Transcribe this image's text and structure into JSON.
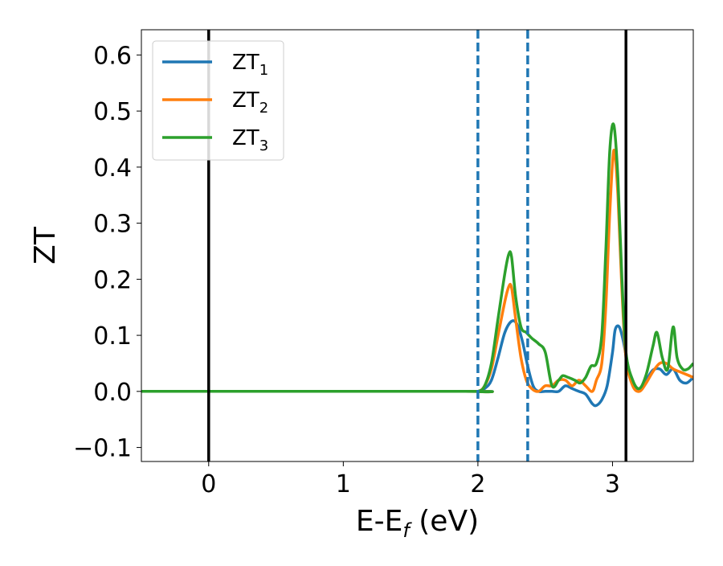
{
  "chart_data": {
    "type": "line",
    "xlabel_parts": {
      "base": "E-E",
      "sub": "f",
      "tail": " (eV)"
    },
    "ylabel": "ZT",
    "xlim": [
      -0.5,
      3.6
    ],
    "ylim": [
      -0.125,
      0.645
    ],
    "xticks": [
      0,
      1,
      2,
      3
    ],
    "xtick_labels": [
      "0",
      "1",
      "2",
      "3"
    ],
    "yticks": [
      -0.1,
      0.0,
      0.1,
      0.2,
      0.3,
      0.4,
      0.5,
      0.6
    ],
    "ytick_labels": [
      "−0.1",
      "0.0",
      "0.1",
      "0.2",
      "0.3",
      "0.4",
      "0.5",
      "0.6"
    ],
    "grid": false,
    "legend_position": "top-left",
    "vlines": [
      {
        "x": 0.0,
        "style": "solid",
        "color": "#000000"
      },
      {
        "x": 2.0,
        "style": "dashed",
        "color": "#1f77b4"
      },
      {
        "x": 2.37,
        "style": "dashed",
        "color": "#1f77b4"
      },
      {
        "x": 3.1,
        "style": "solid",
        "color": "#000000"
      }
    ],
    "series": [
      {
        "name": "ZT1",
        "label_base": "ZT",
        "label_sub": "1",
        "color": "#1f77b4",
        "x": [
          -0.5,
          1.9,
          2.0,
          2.05,
          2.1,
          2.15,
          2.2,
          2.25,
          2.29,
          2.33,
          2.37,
          2.41,
          2.45,
          2.5,
          2.55,
          2.6,
          2.65,
          2.7,
          2.75,
          2.8,
          2.85,
          2.88,
          2.92,
          2.96,
          3.0,
          3.02,
          3.05,
          3.08,
          3.12,
          3.16,
          3.2,
          3.25,
          3.3,
          3.35,
          3.4,
          3.45,
          3.5,
          3.55,
          3.6
        ],
        "y": [
          0.0,
          0.0,
          0.0,
          0.005,
          0.02,
          0.06,
          0.105,
          0.125,
          0.12,
          0.09,
          0.045,
          0.01,
          0.0,
          0.0,
          0.0,
          0.0,
          0.01,
          0.005,
          0.0,
          -0.005,
          -0.022,
          -0.025,
          -0.015,
          0.01,
          0.07,
          0.11,
          0.115,
          0.09,
          0.04,
          0.01,
          0.005,
          0.02,
          0.038,
          0.04,
          0.03,
          0.04,
          0.02,
          0.015,
          0.025
        ]
      },
      {
        "name": "ZT2",
        "label_base": "ZT",
        "label_sub": "2",
        "color": "#ff7f0e",
        "x": [
          -0.5,
          1.9,
          2.0,
          2.05,
          2.1,
          2.15,
          2.2,
          2.23,
          2.25,
          2.28,
          2.32,
          2.36,
          2.4,
          2.45,
          2.5,
          2.55,
          2.6,
          2.65,
          2.7,
          2.75,
          2.8,
          2.85,
          2.88,
          2.92,
          2.95,
          2.98,
          3.01,
          3.04,
          3.07,
          3.1,
          3.15,
          3.2,
          3.25,
          3.3,
          3.35,
          3.4,
          3.45,
          3.5,
          3.55,
          3.6
        ],
        "y": [
          0.0,
          0.0,
          0.0,
          0.01,
          0.04,
          0.1,
          0.16,
          0.187,
          0.185,
          0.13,
          0.06,
          0.02,
          0.005,
          0.0,
          0.01,
          0.01,
          0.02,
          0.02,
          0.01,
          0.02,
          0.01,
          0.0,
          0.02,
          0.05,
          0.15,
          0.32,
          0.43,
          0.35,
          0.18,
          0.06,
          0.01,
          0.0,
          0.015,
          0.035,
          0.05,
          0.05,
          0.04,
          0.035,
          0.03,
          0.025
        ]
      },
      {
        "name": "ZT3",
        "label_base": "ZT",
        "label_sub": "3",
        "color": "#2ca02c",
        "x": [
          -0.5,
          1.9,
          2.0,
          2.05,
          2.1,
          2.15,
          2.2,
          2.23,
          2.25,
          2.28,
          2.32,
          2.36,
          2.4,
          2.45,
          2.5,
          2.55,
          2.6,
          2.63,
          2.67,
          2.72,
          2.76,
          2.8,
          2.84,
          2.88,
          2.92,
          2.95,
          2.98,
          3.01,
          3.04,
          3.07,
          3.1,
          3.15,
          3.2,
          3.25,
          3.3,
          3.33,
          3.37,
          3.41,
          3.45,
          3.48,
          3.52,
          3.56,
          3.6
        ],
        "y": [
          0.0,
          0.0,
          0.0,
          0.01,
          0.05,
          0.13,
          0.21,
          0.245,
          0.24,
          0.17,
          0.115,
          0.105,
          0.095,
          0.085,
          0.07,
          0.01,
          0.02,
          0.028,
          0.025,
          0.02,
          0.015,
          0.025,
          0.045,
          0.05,
          0.1,
          0.25,
          0.43,
          0.475,
          0.38,
          0.2,
          0.07,
          0.02,
          0.005,
          0.03,
          0.08,
          0.105,
          0.06,
          0.04,
          0.115,
          0.06,
          0.04,
          0.04,
          0.05
        ]
      }
    ]
  }
}
